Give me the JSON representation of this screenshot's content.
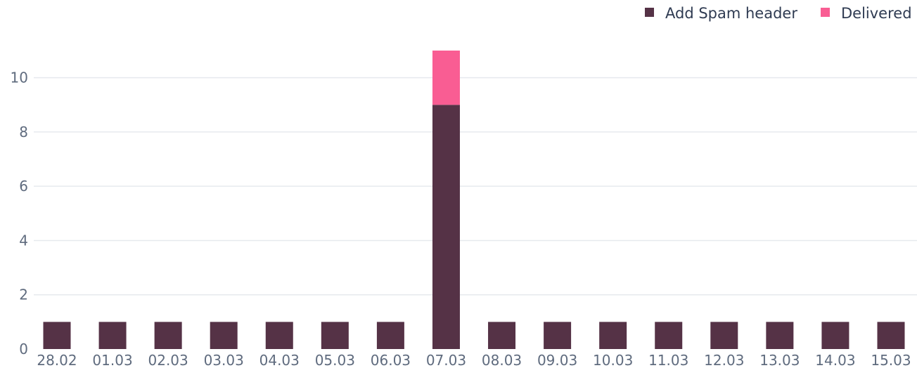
{
  "chart_data": {
    "type": "bar",
    "stacked": true,
    "categories": [
      "28.02",
      "01.03",
      "02.03",
      "03.03",
      "04.03",
      "05.03",
      "06.03",
      "07.03",
      "08.03",
      "09.03",
      "10.03",
      "11.03",
      "12.03",
      "13.03",
      "14.03",
      "15.03"
    ],
    "series": [
      {
        "name": "Add Spam header",
        "color": "#553246",
        "values": [
          1,
          1,
          1,
          1,
          1,
          1,
          1,
          9,
          1,
          1,
          1,
          1,
          1,
          1,
          1,
          1
        ]
      },
      {
        "name": "Delivered",
        "color": "#f95d93",
        "values": [
          0,
          0,
          0,
          0,
          0,
          0,
          0,
          2,
          0,
          0,
          0,
          0,
          0,
          0,
          0,
          0
        ]
      }
    ],
    "yticks": [
      "0",
      "2",
      "4",
      "6",
      "8",
      "10"
    ],
    "ylim": [
      0,
      11
    ],
    "grid": true,
    "legend_position": "top-right"
  }
}
